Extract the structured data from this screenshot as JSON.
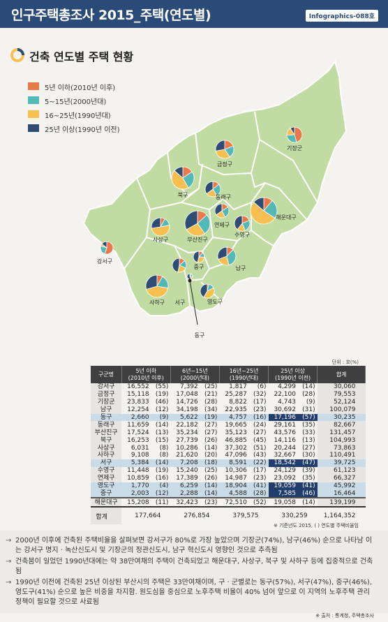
{
  "header": {
    "title": "인구주택총조사 2015_주택(연도별)",
    "badge": "Infographics-088호"
  },
  "section_title": "건축 연도별 주택 현황",
  "legend": [
    {
      "key": "a",
      "label": "5년 이하(2010년 이후)",
      "color": "#e9784a"
    },
    {
      "key": "b",
      "label": "5~15년(2000년대)",
      "color": "#53b9b6"
    },
    {
      "key": "c",
      "label": "16~25년(1990년대)",
      "color": "#f6bf50"
    },
    {
      "key": "d",
      "label": "25년 이상(1990년 이전)",
      "color": "#2f4d74"
    }
  ],
  "chart_data": {
    "type": "pie",
    "title": "건축 연도별 주택 현황",
    "unit": "호(%)",
    "categories": [
      "5년 이하(2010년 이후)",
      "5~15년(2000년대)",
      "16~25년(1990년대)",
      "25년 이상(1990년 이전)"
    ],
    "districts": [
      {
        "name": "강서구",
        "values": [
          16552,
          7392,
          1817,
          4299
        ],
        "pct": [
          55,
          25,
          6,
          14
        ],
        "total": 30060
      },
      {
        "name": "금정구",
        "values": [
          15118,
          17048,
          25287,
          22100
        ],
        "pct": [
          19,
          21,
          32,
          28
        ],
        "total": 79553
      },
      {
        "name": "기장군",
        "values": [
          23833,
          14726,
          8822,
          4743
        ],
        "pct": [
          46,
          28,
          17,
          9
        ],
        "total": 52124
      },
      {
        "name": "남구",
        "values": [
          12254,
          34198,
          22935,
          30692
        ],
        "pct": [
          12,
          34,
          23,
          31
        ],
        "total": 100079
      },
      {
        "name": "동구",
        "values": [
          2660,
          5622,
          4757,
          17196
        ],
        "pct": [
          9,
          19,
          16,
          57
        ],
        "total": 30235
      },
      {
        "name": "동래구",
        "values": [
          11659,
          22182,
          19665,
          29161
        ],
        "pct": [
          14,
          27,
          24,
          35
        ],
        "total": 82667
      },
      {
        "name": "부산진구",
        "values": [
          17524,
          35234,
          35123,
          43576
        ],
        "pct": [
          13,
          27,
          27,
          33
        ],
        "total": 131457
      },
      {
        "name": "북구",
        "values": [
          16253,
          27739,
          46885,
          14116
        ],
        "pct": [
          15,
          26,
          45,
          13
        ],
        "total": 104993
      },
      {
        "name": "사상구",
        "values": [
          6031,
          10286,
          37302,
          20244
        ],
        "pct": [
          8,
          14,
          51,
          27
        ],
        "total": 73863
      },
      {
        "name": "사하구",
        "values": [
          9108,
          21620,
          47096,
          32667
        ],
        "pct": [
          8,
          20,
          43,
          30
        ],
        "total": 110491
      },
      {
        "name": "서구",
        "values": [
          5384,
          7208,
          8591,
          18542
        ],
        "pct": [
          14,
          18,
          22,
          47
        ],
        "total": 39725
      },
      {
        "name": "수영구",
        "values": [
          11448,
          15240,
          10306,
          24129
        ],
        "pct": [
          19,
          25,
          17,
          39
        ],
        "total": 61123
      },
      {
        "name": "연제구",
        "values": [
          10859,
          17389,
          14987,
          23092
        ],
        "pct": [
          16,
          26,
          23,
          35
        ],
        "total": 66327
      },
      {
        "name": "영도구",
        "values": [
          1770,
          6259,
          18904,
          19059
        ],
        "pct": [
          4,
          14,
          41,
          41
        ],
        "total": 45992
      },
      {
        "name": "중구",
        "values": [
          2003,
          2288,
          4588,
          7585
        ],
        "pct": [
          12,
          14,
          28,
          46
        ],
        "total": 16464
      },
      {
        "name": "해운대구",
        "values": [
          15208,
          32423,
          72510,
          19058
        ],
        "pct": [
          11,
          23,
          52,
          14
        ],
        "total": 139199
      }
    ],
    "totals": {
      "name": "합계",
      "values": [
        177664,
        276854,
        379575,
        330259
      ],
      "total": 1164352
    }
  },
  "table": {
    "units_label": "단위 : 호(%)",
    "headers": [
      "구군명",
      "5년 이하\n(2010년 이후)",
      "6년~15년\n(2000년대)",
      "16년~25년\n(1990년대)",
      "25년 이상\n(1990년 이전)",
      "합계"
    ],
    "rows": [
      [
        "강서구",
        "16,552",
        "(55)",
        "7,392",
        "(25)",
        "1,817",
        "(6)",
        "4,299",
        "(14)",
        "30,060"
      ],
      [
        "금정구",
        "15,118",
        "(19)",
        "17,048",
        "(21)",
        "25,287",
        "(32)",
        "22,100",
        "(28)",
        "79,553"
      ],
      [
        "기장군",
        "23,833",
        "(46)",
        "14,726",
        "(28)",
        "8,822",
        "(17)",
        "4,743",
        "(9)",
        "52,124"
      ],
      [
        "남구",
        "12,254",
        "(12)",
        "34,198",
        "(34)",
        "22,935",
        "(23)",
        "30,692",
        "(31)",
        "100,079"
      ],
      [
        "동구",
        "2,660",
        "(9)",
        "5,622",
        "(19)",
        "4,757",
        "(16)",
        "17,196",
        "(57)",
        "30,235"
      ],
      [
        "동래구",
        "11,659",
        "(14)",
        "22,182",
        "(27)",
        "19,665",
        "(24)",
        "29,161",
        "(35)",
        "82,667"
      ],
      [
        "부산진구",
        "17,524",
        "(13)",
        "35,234",
        "(27)",
        "35,123",
        "(27)",
        "43,576",
        "(33)",
        "131,457"
      ],
      [
        "북구",
        "16,253",
        "(15)",
        "27,739",
        "(26)",
        "46,885",
        "(45)",
        "14,116",
        "(13)",
        "104,993"
      ],
      [
        "사상구",
        "6,031",
        "(8)",
        "10,286",
        "(14)",
        "37,302",
        "(51)",
        "20,244",
        "(27)",
        "73,863"
      ],
      [
        "사하구",
        "9,108",
        "(8)",
        "21,620",
        "(20)",
        "47,096",
        "(43)",
        "32,667",
        "(30)",
        "110,491"
      ],
      [
        "서구",
        "5,384",
        "(14)",
        "7,208",
        "(18)",
        "8,591",
        "(22)",
        "18,542",
        "(47)",
        "39,725"
      ],
      [
        "수영구",
        "11,448",
        "(19)",
        "15,240",
        "(25)",
        "10,306",
        "(17)",
        "24,129",
        "(39)",
        "61,123"
      ],
      [
        "연제구",
        "10,859",
        "(16)",
        "17,389",
        "(26)",
        "14,987",
        "(23)",
        "23,092",
        "(35)",
        "66,327"
      ],
      [
        "영도구",
        "1,770",
        "(4)",
        "6,259",
        "(14)",
        "18,904",
        "(41)",
        "19,059",
        "(41)",
        "45,992"
      ],
      [
        "중구",
        "2,003",
        "(12)",
        "2,288",
        "(14)",
        "4,588",
        "(28)",
        "7,585",
        "(46)",
        "16,464"
      ],
      [
        "해운대구",
        "15,208",
        "(11)",
        "32,423",
        "(23)",
        "72,510",
        "(52)",
        "19,058",
        "(14)",
        "139,199"
      ]
    ],
    "total_row": [
      "합계",
      "177,664",
      "276,854",
      "379,575",
      "330,259",
      "1,164,352"
    ],
    "source1": "※ 기준년도 2015, ( ) 연도별 주택비율임"
  },
  "notes": [
    "2000년 이후에 건축된 주택비율을 살펴보면 강서구가 80%로 가장 높았으며 기장군(74%), 남구(46%) 순으로 나타남 이는 강서구 명지 · 녹산신도시 및 기장군의 정관신도시, 남구 혁신도시 영향인 것으로 추측됨",
    "건축붐이 일었던 1990년대에는 약 38만여채의 주택이 건축되었고 해운대구, 사상구, 북구 및 사하구 등에 집중적으로 건축됨",
    "1990년 이전에 건축된 25년 이상된 부산시의 주택은 33만여채이며, 구 · 군별로는 동구(57%), 서구(47%), 중구(46%), 영도구(41%) 순으로 높은 비중을 차지함. 원도심을 중심으로 노후주택 비율이 40% 넘어 앞으로 이 지역의 노후주택 관리 정책이 필요할 것으로 사료됨"
  ],
  "source2": "※ 출처 : 통계청, 주택총조사"
}
